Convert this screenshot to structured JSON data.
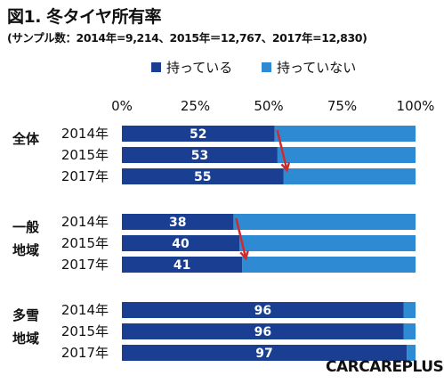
{
  "title": "図1. 冬タイヤ所有率",
  "subtitle": "(サンプル数：2014年=9,214、2015年＝12,767、2017年=12,830)",
  "logo": "CARCAREPLUS",
  "colors": {
    "series_have": "#1a3e91",
    "series_not": "#2d8ad3",
    "arrow": "#d22a2a"
  },
  "chart_data": {
    "type": "bar",
    "orientation": "horizontal",
    "stacked": true,
    "xlim": [
      0,
      100
    ],
    "xticks": [
      "0%",
      "25%",
      "50%",
      "75%",
      "100%"
    ],
    "legend": [
      "持っている",
      "持っていない"
    ],
    "legend_position": "top",
    "groups": [
      {
        "label": "全体",
        "categories": [
          "2014年",
          "2015年",
          "2017年"
        ],
        "have": [
          52,
          53,
          55
        ]
      },
      {
        "label": "一般\n地域",
        "categories": [
          "2014年",
          "2015年",
          "2017年"
        ],
        "have": [
          38,
          40,
          41
        ]
      },
      {
        "label": "多雪\n地域",
        "categories": [
          "2014年",
          "2015年",
          "2017年"
        ],
        "have": [
          96,
          96,
          97
        ]
      }
    ],
    "series": [
      {
        "name": "持っている",
        "values": [
          52,
          53,
          55,
          38,
          40,
          41,
          96,
          96,
          97
        ]
      },
      {
        "name": "持っていない",
        "values": [
          48,
          47,
          45,
          62,
          60,
          59,
          4,
          4,
          3
        ]
      }
    ],
    "annotations": [
      "trend-arrow-overall",
      "trend-arrow-general"
    ]
  }
}
